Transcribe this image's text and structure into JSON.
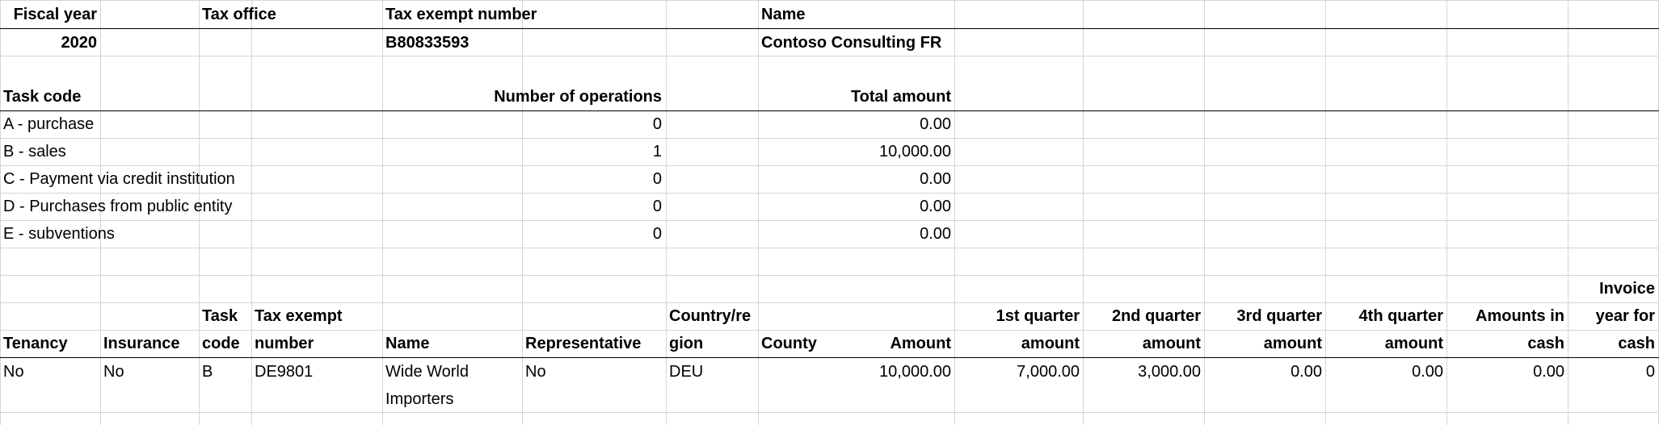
{
  "header": {
    "fiscal_year_label": "Fiscal year",
    "tax_office_label": "Tax office",
    "tax_exempt_label": "Tax exempt number",
    "name_label": "Name",
    "fiscal_year_value": "2020",
    "tax_office_value": "",
    "tax_exempt_value": "B80833593",
    "name_value": "Contoso Consulting FR"
  },
  "summary": {
    "task_code_label": "Task code",
    "ops_label": "Number of operations",
    "total_label": "Total amount",
    "rows": [
      {
        "code": "A - purchase",
        "ops": "0",
        "total": "0.00"
      },
      {
        "code": "B - sales",
        "ops": "1",
        "total": "10,000.00"
      },
      {
        "code": "C - Payment via credit institution",
        "ops": "0",
        "total": "0.00"
      },
      {
        "code": "D - Purchases from public entity",
        "ops": "0",
        "total": "0.00"
      },
      {
        "code": "E - subventions",
        "ops": "0",
        "total": "0.00"
      }
    ]
  },
  "detail": {
    "headers": {
      "tenancy": "Tenancy",
      "insurance": "Insurance",
      "task_code_1": "Task",
      "task_code_2": "code",
      "tax_exempt_1": "Tax exempt",
      "tax_exempt_2": "number",
      "name": "Name",
      "representative": "Representative",
      "country_1": "Country/re",
      "country_2": "gion",
      "county": "County",
      "amount": "Amount",
      "q1_1": "1st quarter",
      "q1_2": "amount",
      "q2_1": "2nd quarter",
      "q2_2": "amount",
      "q3_1": "3rd quarter",
      "q3_2": "amount",
      "q4_1": "4th quarter",
      "q4_2": "amount",
      "cash_1": "Amounts in",
      "cash_2": "cash",
      "inv_1": "Invoice",
      "inv_2": "year for",
      "inv_3": "cash"
    },
    "row": {
      "tenancy": "No",
      "insurance": "No",
      "task_code": "B",
      "tax_exempt": "DE9801",
      "name_1": "Wide World",
      "name_2": "Importers",
      "representative": "No",
      "country": "DEU",
      "county": "",
      "amount": "10,000.00",
      "q1": "7,000.00",
      "q2": "3,000.00",
      "q3": "0.00",
      "q4": "0.00",
      "cash": "0.00",
      "inv_year": "0"
    }
  }
}
